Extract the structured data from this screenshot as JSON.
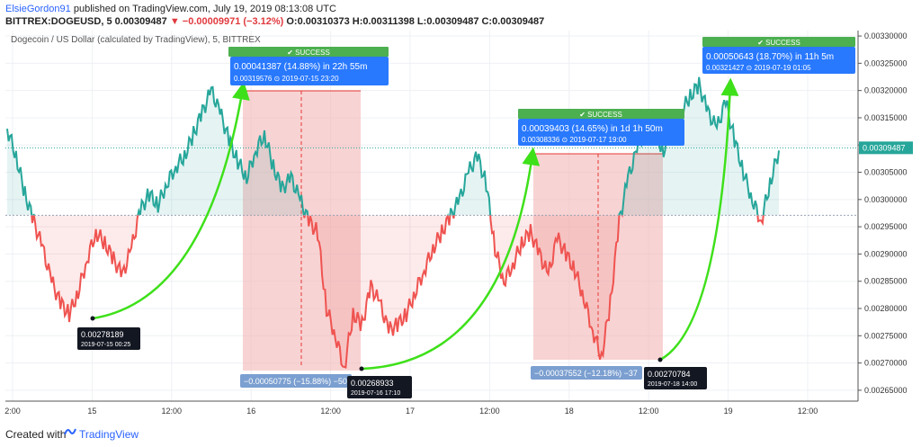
{
  "header": {
    "author": "ElsieGordon91",
    "published": "published on TradingView.com, July 19, 2019 08:13:08 UTC",
    "symbol": "BITTREX:DOGEUSD, 5",
    "last": "0.00309487",
    "change": "▼ −0.00009971 (−3.12%)",
    "ohlc": "O:0.00310373 H:0.00311398 L:0.00309487 C:0.00309487"
  },
  "footer": {
    "created_with": "Created with",
    "brand": "TradingView"
  },
  "colors": {
    "up": "#26a69a",
    "down": "#ef5350",
    "green_arrow": "#3ee01a",
    "blue_box": "#2979ff",
    "success_green": "#4caf50",
    "dark_box": "#131722",
    "light_blue_box": "#7b9fd0",
    "zone_red": "#f4b6b6"
  },
  "chart_data": {
    "type": "line",
    "title": "Dogecoin / US Dollar (calculated by TradingView), 5, BITTREX",
    "x_tick_labels": [
      "2:00",
      "15",
      "12:00",
      "16",
      "12:00",
      "17",
      "12:00",
      "18",
      "12:00",
      "19",
      "12:00"
    ],
    "y_tick_labels": [
      "0.00330000",
      "0.00325000",
      "0.00320000",
      "0.00315000",
      "0.00310000",
      "0.00305000",
      "0.00300000",
      "0.00295000",
      "0.00290000",
      "0.00285000",
      "0.00280000",
      "0.00275000",
      "0.00270000",
      "0.00265000"
    ],
    "ylim": [
      0.00263,
      0.00331
    ],
    "baseline": 0.002971,
    "last_price_label": "0.00309487",
    "series": [
      {
        "values": [
          0.00313,
          0.00308,
          0.00301,
          0.00296,
          0.00291,
          0.00285,
          0.00281,
          0.00279,
          0.00283,
          0.00289,
          0.00294,
          0.00292,
          0.00289,
          0.00286,
          0.00291,
          0.00298,
          0.00301,
          0.00299,
          0.00303,
          0.00306,
          0.00308,
          0.00312,
          0.00316,
          0.0032,
          0.00316,
          0.00311,
          0.00307,
          0.00304,
          0.00309,
          0.00312,
          0.00306,
          0.00302,
          0.00304,
          0.003,
          0.00296,
          0.00294,
          0.0028,
          0.00275,
          0.00269,
          0.00279,
          0.00277,
          0.00284,
          0.00281,
          0.00276,
          0.00277,
          0.00279,
          0.00283,
          0.00287,
          0.00291,
          0.00294,
          0.00297,
          0.003,
          0.00305,
          0.00308,
          0.00303,
          0.00291,
          0.00285,
          0.00288,
          0.00292,
          0.00294,
          0.0029,
          0.00286,
          0.00293,
          0.0029,
          0.00287,
          0.00282,
          0.00276,
          0.00271,
          0.00281,
          0.00296,
          0.00304,
          0.00309,
          0.00314,
          0.00312,
          0.00309,
          0.00313,
          0.00316,
          0.00319,
          0.00321,
          0.00316,
          0.00313,
          0.00318,
          0.00311,
          0.00305,
          0.003,
          0.00296,
          0.00303,
          0.00309
        ]
      }
    ],
    "annotations": [
      {
        "label": "0.00041387 (14.88%) in 22h 55m",
        "sub": "0.00319576  ⊙ 2019-07-15  23:20",
        "status": "✔ SUCCESS"
      },
      {
        "label": "0.00039403 (14.65%) in 1d 1h 50m",
        "sub": "0.00308336  ⊙ 2019-07-17  19:00",
        "status": "✔ SUCCESS"
      },
      {
        "label": "0.00050643 (18.70%) in 11h 5m",
        "sub": "0.00321427  ⊙ 2019-07-19  01:05",
        "status": "✔ SUCCESS"
      }
    ],
    "drops": [
      {
        "label": "−0.00050775 (−15.88%) −50"
      },
      {
        "label": "−0.00037552 (−12.18%) −37"
      }
    ],
    "pivots": [
      {
        "price": "0.00278189",
        "time": "2019-07-15 00:25"
      },
      {
        "price": "0.00268933",
        "time": "2019-07-16 17:10"
      },
      {
        "price": "0.00270784",
        "time": "2019-07-18 14:00"
      }
    ]
  }
}
